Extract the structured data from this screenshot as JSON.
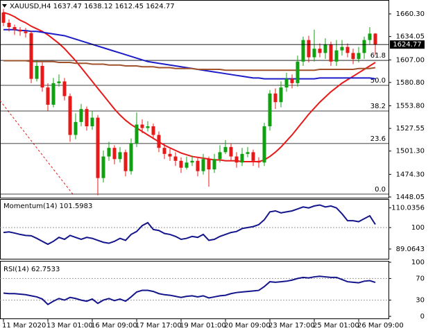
{
  "chart_data": [
    {
      "type": "candlestick",
      "title": "XAUUSD,H4  1637.47 1638.12 1612.45 1624.77",
      "categories": [
        "11 Mar 2020",
        null,
        null,
        null,
        null,
        null,
        null,
        null,
        "13 Mar 01:00",
        null,
        null,
        null,
        null,
        null,
        null,
        null,
        "16 Mar 09:00",
        null,
        null,
        null,
        null,
        null,
        null,
        null,
        "17 Mar 17:00",
        null,
        null,
        null,
        null,
        null,
        null,
        null,
        "19 Mar 01:00",
        null,
        null,
        null,
        null,
        null,
        null,
        null,
        "20 Mar 09:00",
        null,
        null,
        null,
        null,
        null,
        null,
        null,
        "23 Mar 17:00",
        null,
        null,
        null,
        null,
        null,
        null,
        null,
        "25 Mar 01:00",
        null,
        null,
        null,
        null,
        null,
        null,
        null,
        "26 Mar 09:00",
        null,
        null,
        null
      ],
      "open": [
        1662,
        1650,
        1645,
        1642,
        1640,
        1638,
        1585,
        1600,
        1575,
        1555,
        1580,
        1582,
        1565,
        1520,
        1535,
        1550,
        1530,
        1540,
        1470,
        1495,
        1505,
        1492,
        1500,
        1478,
        1510,
        1532,
        1528,
        1530,
        1520,
        1505,
        1498,
        1495,
        1490,
        1482,
        1488,
        1490,
        1478,
        1492,
        1480,
        1492,
        1500,
        1506,
        1495,
        1488,
        1498,
        1500,
        1490,
        1488,
        1530,
        1568,
        1558,
        1575,
        1585,
        1580,
        1605,
        1630,
        1610,
        1620,
        1615,
        1625,
        1605,
        1618,
        1622,
        1615,
        1608,
        1615,
        1630,
        1637.47
      ],
      "high": [
        1666,
        1654,
        1648,
        1645,
        1644,
        1641,
        1606,
        1604,
        1580,
        1586,
        1590,
        1586,
        1568,
        1545,
        1556,
        1553,
        1548,
        1543,
        1502,
        1512,
        1508,
        1506,
        1503,
        1516,
        1546,
        1538,
        1536,
        1533,
        1524,
        1510,
        1504,
        1500,
        1494,
        1495,
        1496,
        1493,
        1498,
        1495,
        1498,
        1508,
        1514,
        1510,
        1500,
        1505,
        1506,
        1503,
        1494,
        1534,
        1572,
        1574,
        1582,
        1592,
        1590,
        1612,
        1634,
        1635,
        1642,
        1626,
        1632,
        1628,
        1630,
        1630,
        1626,
        1620,
        1622,
        1634,
        1645,
        1638.12
      ],
      "low": [
        1646,
        1640,
        1636,
        1635,
        1633,
        1580,
        1582,
        1570,
        1548,
        1552,
        1576,
        1560,
        1512,
        1515,
        1530,
        1525,
        1526,
        1450,
        1465,
        1490,
        1486,
        1488,
        1472,
        1474,
        1506,
        1522,
        1524,
        1515,
        1500,
        1492,
        1490,
        1484,
        1476,
        1480,
        1484,
        1472,
        1474,
        1460,
        1476,
        1488,
        1498,
        1490,
        1482,
        1484,
        1494,
        1484,
        1482,
        1484,
        1525,
        1550,
        1552,
        1570,
        1574,
        1576,
        1600,
        1604,
        1605,
        1610,
        1608,
        1600,
        1600,
        1612,
        1610,
        1602,
        1604,
        1608,
        1625,
        1612.45
      ],
      "close": [
        1650,
        1645,
        1642,
        1640,
        1638,
        1585,
        1600,
        1575,
        1555,
        1580,
        1582,
        1565,
        1520,
        1535,
        1550,
        1530,
        1540,
        1470,
        1495,
        1505,
        1492,
        1500,
        1478,
        1510,
        1532,
        1528,
        1530,
        1520,
        1505,
        1498,
        1495,
        1490,
        1482,
        1488,
        1490,
        1478,
        1492,
        1480,
        1492,
        1500,
        1506,
        1495,
        1488,
        1498,
        1500,
        1490,
        1488,
        1530,
        1568,
        1558,
        1575,
        1585,
        1580,
        1605,
        1630,
        1610,
        1620,
        1615,
        1625,
        1605,
        1618,
        1622,
        1615,
        1608,
        1615,
        1630,
        1637.47,
        1624.77
      ],
      "up_color": "#11a011",
      "down_color": "#e81818",
      "series": [
        {
          "color": "#e81818",
          "values": [
            1662,
            1660,
            1657,
            1653,
            1650,
            1646,
            1643,
            1640,
            1636,
            1631,
            1626,
            1620,
            1613,
            1606,
            1598,
            1590,
            1582,
            1574,
            1566,
            1558,
            1550,
            1543,
            1537,
            1532,
            1528,
            1524,
            1520,
            1516,
            1512,
            1508,
            1505,
            1502,
            1499,
            1497,
            1495,
            1494,
            1493,
            1492,
            1491,
            1491,
            1490,
            1490,
            1490,
            1489,
            1489,
            1489,
            1489,
            1491,
            1495,
            1500,
            1506,
            1513,
            1520,
            1528,
            1536,
            1544,
            1551,
            1558,
            1564,
            1570,
            1575,
            1580,
            1584,
            1588,
            1592,
            1596,
            1600,
            1604
          ]
        },
        {
          "color": "#1c1cc8",
          "values": [
            1642,
            1642,
            1642,
            1641,
            1641,
            1640,
            1640,
            1639,
            1638,
            1637,
            1636,
            1635,
            1633,
            1631,
            1629,
            1627,
            1625,
            1623,
            1621,
            1619,
            1617,
            1615,
            1613,
            1611,
            1609,
            1607,
            1605,
            1604,
            1603,
            1602,
            1601,
            1600,
            1599,
            1598,
            1597,
            1596,
            1595,
            1594,
            1593,
            1592,
            1591,
            1590,
            1589,
            1588,
            1587,
            1586,
            1586,
            1585,
            1585,
            1585,
            1585,
            1585,
            1585,
            1585,
            1585,
            1585,
            1585,
            1586,
            1586,
            1586,
            1586,
            1586,
            1586,
            1586,
            1586,
            1586,
            1586,
            1585
          ]
        },
        {
          "color": "#a0522d",
          "values": [
            1606,
            1606,
            1606,
            1606,
            1606,
            1605,
            1605,
            1605,
            1605,
            1605,
            1604,
            1604,
            1604,
            1603,
            1603,
            1603,
            1602,
            1602,
            1602,
            1601,
            1601,
            1601,
            1600,
            1600,
            1600,
            1599,
            1599,
            1599,
            1598,
            1598,
            1598,
            1597,
            1597,
            1597,
            1597,
            1596,
            1596,
            1596,
            1596,
            1596,
            1595,
            1595,
            1595,
            1595,
            1595,
            1595,
            1595,
            1595,
            1595,
            1595,
            1595,
            1595,
            1595,
            1595,
            1595,
            1595,
            1595,
            1596,
            1596,
            1596,
            1596,
            1596,
            1596,
            1596,
            1597,
            1597,
            1597,
            1598
          ]
        }
      ],
      "fib_levels": [
        {
          "value": 1606.4,
          "label": "61.8"
        },
        {
          "value": 1577.5,
          "label": "50.0"
        },
        {
          "value": 1547.7,
          "label": "38.2"
        },
        {
          "value": 1510.0,
          "label": "23.6"
        },
        {
          "value": 1451.3,
          "label": "0.0"
        }
      ],
      "ylim": [
        1447.2,
        1676.4
      ],
      "yticks": [
        {
          "value": 1660.3,
          "label": "1660.30"
        },
        1634.05,
        {
          "value": 1607,
          "label": "1607.00"
        },
        {
          "value": 1580.8,
          "label": "1580.80"
        },
        {
          "value": 1553.8,
          "label": "1553.80"
        },
        1527.55,
        {
          "value": 1501.3,
          "label": "1501.30"
        },
        {
          "value": 1474.3,
          "label": "1474.30"
        },
        1448.05
      ]
    },
    {
      "type": "line",
      "title": "Momentum(14) 101.5983",
      "color": "#14148c",
      "values": [
        97.5,
        97.8,
        97.2,
        96.5,
        96.0,
        95.8,
        94.5,
        93.0,
        91.5,
        93.0,
        95.0,
        94.0,
        96.0,
        95.0,
        94.0,
        95.0,
        94.5,
        93.5,
        92.5,
        92.0,
        93.0,
        94.5,
        93.5,
        96.5,
        98.0,
        101.0,
        102.5,
        99.0,
        98.5,
        97.0,
        96.5,
        95.5,
        94.0,
        94.5,
        95.5,
        95.0,
        96.5,
        93.5,
        94.0,
        95.5,
        96.5,
        97.5,
        98.0,
        99.5,
        100.0,
        100.5,
        101.5,
        104.0,
        108.0,
        108.5,
        107.5,
        108.0,
        108.5,
        109.5,
        110.5,
        110.0,
        111.0,
        111.5,
        110.5,
        111.0,
        110.0,
        107.0,
        103.5,
        103.5,
        103.0,
        104.5,
        106.0,
        101.5983
      ],
      "ylim": [
        84.1,
        114.5
      ],
      "yticks": [
        110.0356,
        100,
        89.0643
      ],
      "levels": [
        100
      ]
    },
    {
      "type": "line",
      "title": "RSI(14) 62.7533",
      "color": "#14148c",
      "values": [
        43,
        42,
        42,
        41,
        40,
        38,
        36,
        32,
        22,
        28,
        33,
        30,
        35,
        33,
        30,
        28,
        32,
        24,
        30,
        33,
        29,
        32,
        28,
        36,
        45,
        48,
        48,
        46,
        42,
        40,
        39,
        37,
        35,
        37,
        38,
        36,
        38,
        34,
        36,
        38,
        39,
        42,
        44,
        45,
        46,
        47,
        48,
        55,
        64,
        63,
        64,
        65,
        67,
        70,
        72,
        71,
        73,
        74,
        73,
        72,
        72,
        68,
        64,
        63,
        62,
        65,
        66,
        62.7533
      ],
      "ylim": [
        0,
        100
      ],
      "yticks": [
        100,
        70,
        30,
        0
      ],
      "levels": [
        70,
        30
      ]
    }
  ]
}
